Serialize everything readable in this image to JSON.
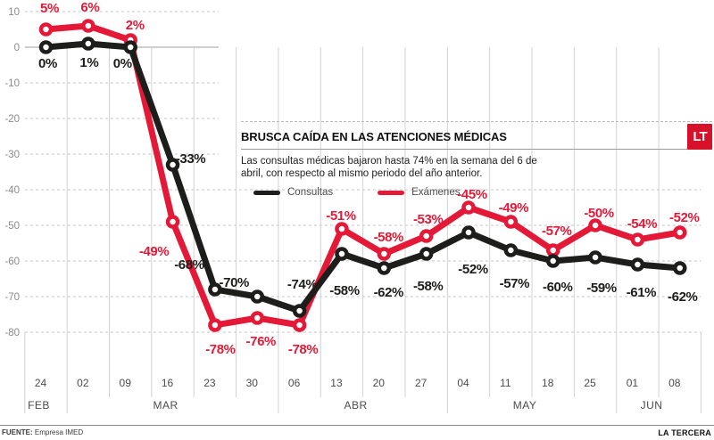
{
  "header": {
    "title": "BRUSCA CAÍDA EN LAS ATENCIONES MÉDICAS",
    "logo": "LT",
    "subtitle": "Las consultas médicas bajaron hasta 74% en la semana del 6 de abril, con respecto al mismo periodo del año anterior."
  },
  "legend": {
    "consultas": "Consultas",
    "examenes": "Exámenes"
  },
  "footer": {
    "source_label": "FUENTE:",
    "source": "Empresa IMED",
    "brand": "LA TERCERA"
  },
  "colors": {
    "consultas": "#1d1d1b",
    "examenes": "#e41937",
    "logo_bg": "#d8112b",
    "grid_dash": "#c3c3c3",
    "grid_zero": "#9c9c9c",
    "grid_vertical": "#d2d2d2",
    "axis_text": "#8a8a8a"
  },
  "chart_data": {
    "type": "line",
    "title": "BRUSCA CAÍDA EN LAS ATENCIONES MÉDICAS",
    "ylabel": "",
    "xlabel": "",
    "ylim": [
      -80,
      10
    ],
    "yticks": [
      10,
      0,
      -10,
      -20,
      -30,
      -40,
      -50,
      -60,
      -70,
      -80
    ],
    "grid": "horizontal-dashed",
    "legend_position": "inside-top-right-box",
    "x_tick_labels": [
      "24",
      "02",
      "09",
      "16",
      "23",
      "30",
      "06",
      "13",
      "20",
      "27",
      "04",
      "11",
      "18",
      "25",
      "01",
      "08"
    ],
    "month_groups": [
      {
        "label": "FEB",
        "count": 1
      },
      {
        "label": "MAR",
        "count": 5
      },
      {
        "label": "ABR",
        "count": 4
      },
      {
        "label": "MAY",
        "count": 4
      },
      {
        "label": "JUN",
        "count": 2
      }
    ],
    "unit": "%",
    "series": [
      {
        "name": "Exámenes",
        "color": "#e41937",
        "values": [
          5,
          6,
          2,
          -49,
          -78,
          -76,
          -78,
          -51,
          -58,
          -53,
          -45,
          -49,
          -57,
          -50,
          -54,
          -52
        ],
        "label_offsets": [
          [
            4,
            -24
          ],
          [
            2,
            -21
          ],
          [
            5,
            -17
          ],
          [
            -21,
            33
          ],
          [
            6,
            27
          ],
          [
            4,
            26
          ],
          [
            4,
            27
          ],
          [
            -1,
            -15
          ],
          [
            5,
            -19
          ],
          [
            2,
            -19
          ],
          [
            4,
            -15
          ],
          [
            3,
            -16
          ],
          [
            4,
            -22
          ],
          [
            4,
            -14
          ],
          [
            5,
            -18
          ],
          [
            5,
            -17
          ]
        ]
      },
      {
        "name": "Consultas",
        "color": "#1d1d1b",
        "values": [
          0,
          1,
          0,
          -33,
          -68,
          -70,
          -74,
          -58,
          -62,
          -58,
          -52,
          -57,
          -60,
          -59,
          -61,
          -62
        ],
        "label_offsets": [
          [
            2,
            18
          ],
          [
            1,
            21
          ],
          [
            -9,
            18
          ],
          [
            20,
            -7
          ],
          [
            -29,
            -28
          ],
          [
            -26,
            -16
          ],
          [
            3,
            -30
          ],
          [
            3,
            41
          ],
          [
            5,
            27
          ],
          [
            2,
            36
          ],
          [
            5,
            41
          ],
          [
            4,
            37
          ],
          [
            5,
            29
          ],
          [
            7,
            34
          ],
          [
            4,
            31
          ],
          [
            3,
            32
          ]
        ]
      }
    ]
  }
}
